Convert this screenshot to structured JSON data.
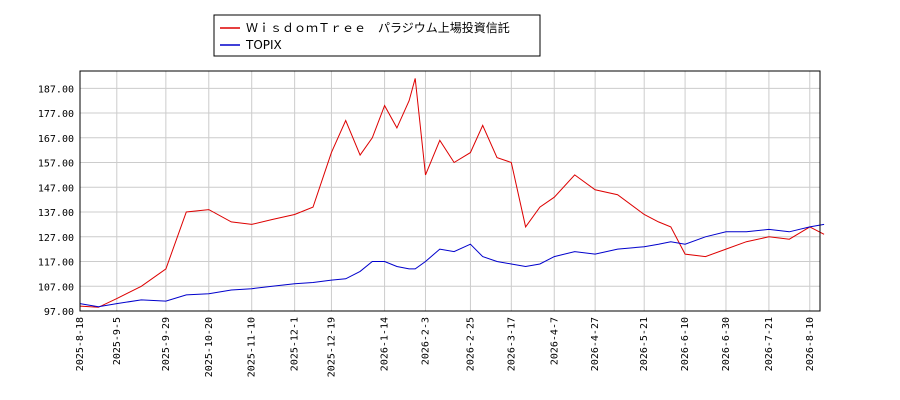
{
  "chart_data": {
    "type": "line",
    "title": "",
    "xlabel": "",
    "ylabel": "",
    "ylim": [
      97,
      194
    ],
    "yticks": [
      "97.00",
      "107.00",
      "117.00",
      "127.00",
      "137.00",
      "147.00",
      "157.00",
      "167.00",
      "177.00",
      "187.00"
    ],
    "xticks": [
      "2025-8-18",
      "2025-9-5",
      "2025-9-29",
      "2025-10-20",
      "2025-11-10",
      "2025-12-1",
      "2025-12-19",
      "2026-1-14",
      "2026-2-3",
      "2026-2-25",
      "2026-3-17",
      "2026-4-7",
      "2026-4-27",
      "2026-5-21",
      "2026-6-10",
      "2026-6-30",
      "2026-7-21",
      "2026-8-10"
    ],
    "grid": true,
    "legend_position": "top-left",
    "series": [
      {
        "name": "ＷｉｓｄｏｍＴｒｅｅ　パラジウム上場投資信託",
        "color": "#dd0000",
        "x": [
          "2025-8-18",
          "2025-8-27",
          "2025-9-5",
          "2025-9-17",
          "2025-9-29",
          "2025-10-9",
          "2025-10-20",
          "2025-10-31",
          "2025-11-10",
          "2025-11-20",
          "2025-12-1",
          "2025-12-10",
          "2025-12-19",
          "2025-12-26",
          "2026-1-2",
          "2026-1-8",
          "2026-1-14",
          "2026-1-20",
          "2026-1-26",
          "2026-1-29",
          "2026-2-3",
          "2026-2-10",
          "2026-2-17",
          "2026-2-25",
          "2026-3-3",
          "2026-3-10",
          "2026-3-17",
          "2026-3-24",
          "2026-3-31",
          "2026-4-7",
          "2026-4-17",
          "2026-4-27",
          "2026-5-8",
          "2026-5-21",
          "2026-5-28",
          "2026-6-3",
          "2026-6-10",
          "2026-6-20",
          "2026-6-30",
          "2026-7-10",
          "2026-7-21",
          "2026-7-31",
          "2026-8-10",
          "2026-8-17"
        ],
        "values": [
          99,
          98.5,
          102,
          107,
          114,
          137,
          138,
          133,
          132,
          134,
          136,
          139,
          161,
          174,
          160,
          167,
          180,
          171,
          182,
          191,
          152,
          166,
          157,
          161,
          172,
          159,
          157,
          131,
          139,
          143,
          152,
          146,
          144,
          136,
          133,
          131,
          120,
          119,
          122,
          125,
          127,
          126,
          131,
          128
        ]
      },
      {
        "name": "TOPIX",
        "color": "#0000cc",
        "x": [
          "2025-8-18",
          "2025-8-27",
          "2025-9-5",
          "2025-9-17",
          "2025-9-29",
          "2025-10-9",
          "2025-10-20",
          "2025-10-31",
          "2025-11-10",
          "2025-11-20",
          "2025-12-1",
          "2025-12-10",
          "2025-12-19",
          "2025-12-26",
          "2026-1-2",
          "2026-1-8",
          "2026-1-14",
          "2026-1-20",
          "2026-1-26",
          "2026-1-29",
          "2026-2-3",
          "2026-2-10",
          "2026-2-17",
          "2026-2-25",
          "2026-3-3",
          "2026-3-10",
          "2026-3-17",
          "2026-3-24",
          "2026-3-31",
          "2026-4-7",
          "2026-4-17",
          "2026-4-27",
          "2026-5-8",
          "2026-5-21",
          "2026-5-28",
          "2026-6-3",
          "2026-6-10",
          "2026-6-20",
          "2026-6-30",
          "2026-7-10",
          "2026-7-21",
          "2026-7-31",
          "2026-8-10",
          "2026-8-17"
        ],
        "values": [
          100,
          98.7,
          100,
          101.5,
          101,
          103.5,
          104,
          105.5,
          106,
          107,
          108,
          108.5,
          109.5,
          110,
          113,
          117,
          117,
          115,
          114,
          114,
          117,
          122,
          121,
          124,
          119,
          117,
          116,
          115,
          116,
          119,
          121,
          120,
          122,
          123,
          124,
          125,
          124,
          127,
          129,
          129,
          130,
          129,
          131,
          132
        ]
      }
    ]
  }
}
